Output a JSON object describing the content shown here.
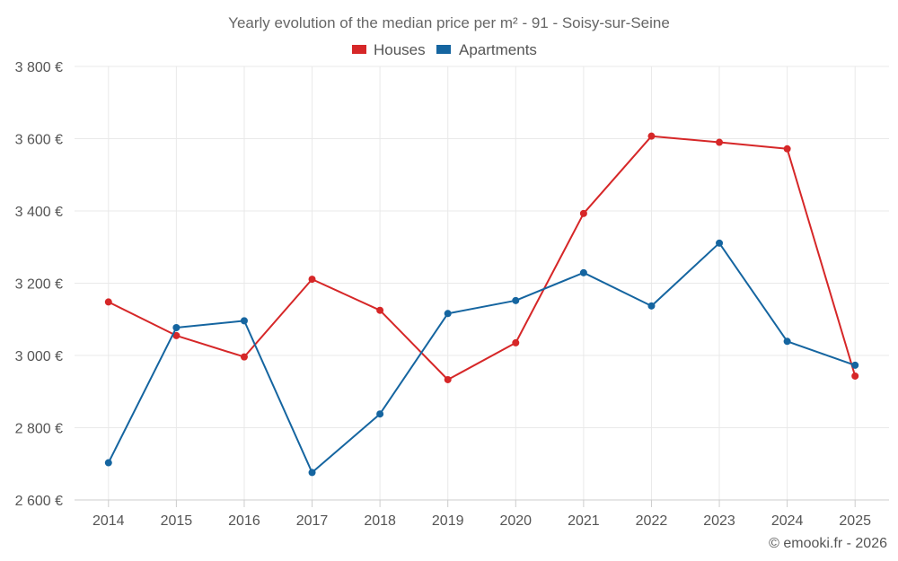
{
  "chart_data": {
    "type": "line",
    "title": "Yearly evolution of the median price per m² - 91 - Soisy-sur-Seine",
    "categories": [
      "2014",
      "2015",
      "2016",
      "2017",
      "2018",
      "2019",
      "2020",
      "2021",
      "2022",
      "2023",
      "2024",
      "2025"
    ],
    "series": [
      {
        "name": "Houses",
        "color": "#d62728",
        "values": [
          3148,
          3055,
          2996,
          3211,
          3125,
          2933,
          3035,
          3393,
          3607,
          3590,
          3572,
          2943
        ]
      },
      {
        "name": "Apartments",
        "color": "#1565a0",
        "values": [
          2703,
          3077,
          3096,
          2676,
          2838,
          3116,
          3152,
          3229,
          3137,
          3311,
          3039,
          2973
        ]
      }
    ],
    "ylim": [
      2600,
      3800
    ],
    "yticks": [
      2600,
      2800,
      3000,
      3200,
      3400,
      3600,
      3800
    ],
    "ytick_labels": [
      "2 600 €",
      "2 800 €",
      "3 000 €",
      "3 200 €",
      "3 400 €",
      "3 600 €",
      "3 800 €"
    ],
    "legend_position": "top-center",
    "grid": true,
    "credit": "© emooki.fr - 2026"
  }
}
